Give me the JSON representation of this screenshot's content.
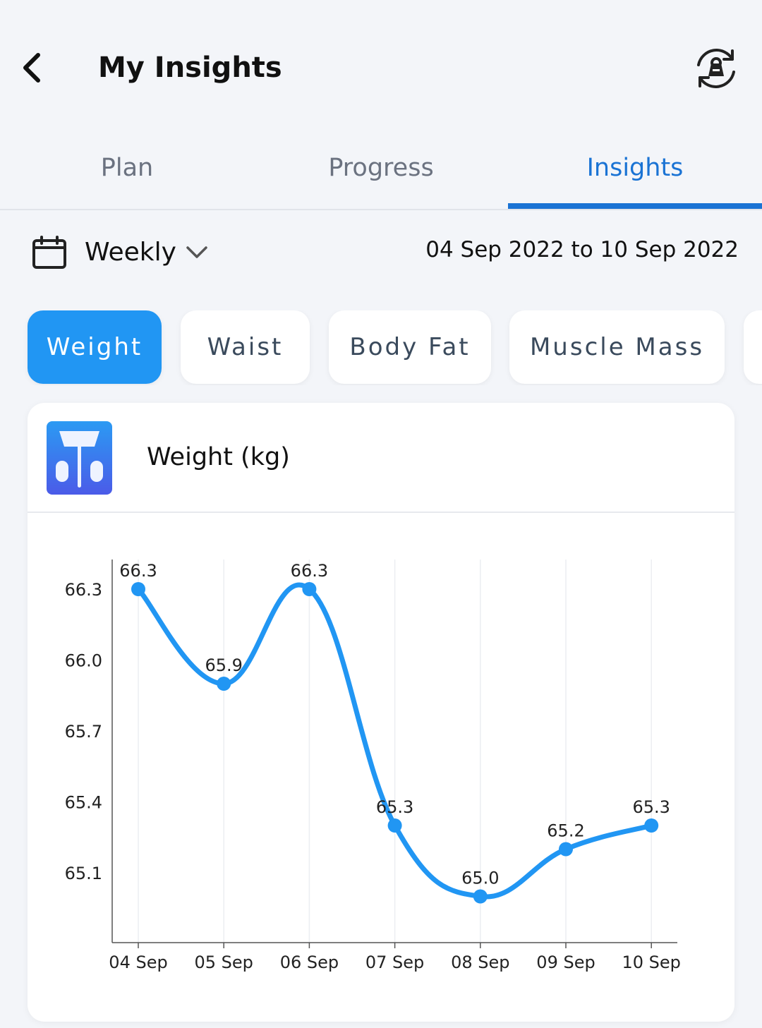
{
  "header": {
    "title": "My Insights",
    "back_icon": "chevron-left-icon",
    "device_icon": "scale-sync-icon"
  },
  "tabs": [
    {
      "label": "Plan",
      "active": false
    },
    {
      "label": "Progress",
      "active": false
    },
    {
      "label": "Insights",
      "active": true
    }
  ],
  "filter": {
    "period": "Weekly",
    "date_range": "04 Sep 2022 to 10 Sep 2022",
    "calendar_icon": "calendar-icon",
    "dropdown_icon": "chevron-down-icon"
  },
  "metrics": [
    {
      "label": "Weight",
      "active": true
    },
    {
      "label": "Waist",
      "active": false
    },
    {
      "label": "Body Fat",
      "active": false
    },
    {
      "label": "Muscle Mass",
      "active": false
    }
  ],
  "card": {
    "title": "Weight (kg)",
    "icon": "weighing-scale-icon"
  },
  "colors": {
    "accent": "#1a73d4",
    "chip_active": "#2196f3",
    "line": "#2196f3",
    "bg": "#f3f5f9"
  },
  "chart_data": {
    "type": "line",
    "categories": [
      "04 Sep",
      "05 Sep",
      "06 Sep",
      "07 Sep",
      "08 Sep",
      "09 Sep",
      "10 Sep"
    ],
    "values": [
      66.3,
      65.9,
      66.3,
      65.3,
      65.0,
      65.2,
      65.3
    ],
    "yticks": [
      "66.3",
      "66.0",
      "65.7",
      "65.4",
      "65.1"
    ],
    "grid": "vertical",
    "smooth": true
  }
}
